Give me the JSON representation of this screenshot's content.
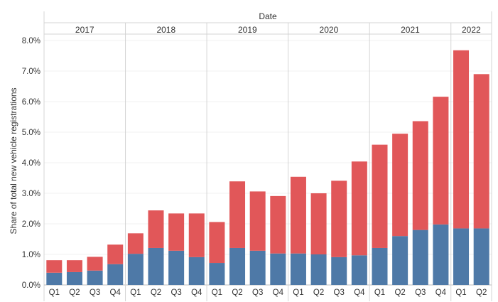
{
  "chart_data": {
    "type": "bar",
    "stacked": true,
    "column_header": "Date",
    "ylabel": "Share of total new vehicle registrations",
    "ylim": [
      0,
      0.08
    ],
    "yticks": [
      "0.0%",
      "1.0%",
      "2.0%",
      "3.0%",
      "4.0%",
      "5.0%",
      "6.0%",
      "7.0%",
      "8.0%"
    ],
    "grid": true,
    "years": [
      {
        "label": "2017",
        "quarters": [
          "Q1",
          "Q2",
          "Q3",
          "Q4"
        ]
      },
      {
        "label": "2018",
        "quarters": [
          "Q1",
          "Q2",
          "Q3",
          "Q4"
        ]
      },
      {
        "label": "2019",
        "quarters": [
          "Q1",
          "Q2",
          "Q3",
          "Q4"
        ]
      },
      {
        "label": "2020",
        "quarters": [
          "Q1",
          "Q2",
          "Q3",
          "Q4"
        ]
      },
      {
        "label": "2021",
        "quarters": [
          "Q1",
          "Q2",
          "Q3",
          "Q4"
        ]
      },
      {
        "label": "2022",
        "quarters": [
          "Q1",
          "Q2"
        ]
      }
    ],
    "series": [
      {
        "color": "#4e79a7",
        "values": [
          0.004,
          0.0042,
          0.0047,
          0.0068,
          0.0102,
          0.0121,
          0.0112,
          0.0091,
          0.0072,
          0.0121,
          0.0112,
          0.0103,
          0.0103,
          0.01,
          0.0091,
          0.0097,
          0.0121,
          0.016,
          0.018,
          0.0198,
          0.0185,
          0.0185
        ]
      },
      {
        "color": "#e15759",
        "values": [
          0.0041,
          0.0039,
          0.0045,
          0.0064,
          0.0067,
          0.0123,
          0.0122,
          0.0143,
          0.0134,
          0.0218,
          0.0194,
          0.0188,
          0.0251,
          0.02,
          0.025,
          0.0307,
          0.0338,
          0.0335,
          0.0356,
          0.0418,
          0.0583,
          0.0505
        ]
      }
    ]
  }
}
